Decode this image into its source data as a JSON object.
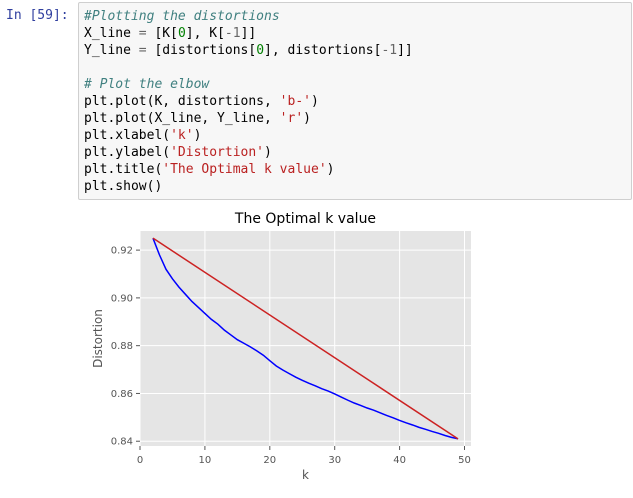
{
  "cell": {
    "prompt": "In [59]:",
    "code_lines": [
      [
        {
          "t": "#Plotting the distortions",
          "c": "cm"
        }
      ],
      [
        {
          "t": "X_line "
        },
        {
          "t": "=",
          "c": "op"
        },
        {
          "t": " [K["
        },
        {
          "t": "0",
          "c": "num"
        },
        {
          "t": "], K["
        },
        {
          "t": "-1",
          "c": "op"
        },
        {
          "t": "]]"
        }
      ],
      [
        {
          "t": "Y_line "
        },
        {
          "t": "=",
          "c": "op"
        },
        {
          "t": " [distortions["
        },
        {
          "t": "0",
          "c": "num"
        },
        {
          "t": "], distortions["
        },
        {
          "t": "-1",
          "c": "op"
        },
        {
          "t": "]]"
        }
      ],
      [
        {
          "t": ""
        }
      ],
      [
        {
          "t": "# Plot the elbow",
          "c": "cm"
        }
      ],
      [
        {
          "t": "plt.plot(K, distortions, "
        },
        {
          "t": "'b-'",
          "c": "str"
        },
        {
          "t": ")"
        }
      ],
      [
        {
          "t": "plt.plot(X_line, Y_line, "
        },
        {
          "t": "'r'",
          "c": "str"
        },
        {
          "t": ")"
        }
      ],
      [
        {
          "t": "plt.xlabel("
        },
        {
          "t": "'k'",
          "c": "str"
        },
        {
          "t": ")"
        }
      ],
      [
        {
          "t": "plt.ylabel("
        },
        {
          "t": "'Distortion'",
          "c": "str"
        },
        {
          "t": ")"
        }
      ],
      [
        {
          "t": "plt.title("
        },
        {
          "t": "'The Optimal k value'",
          "c": "str"
        },
        {
          "t": ")"
        }
      ],
      [
        {
          "t": "plt.show()"
        }
      ]
    ]
  },
  "chart_data": {
    "type": "line",
    "title": "The Optimal k value",
    "xlabel": "k",
    "ylabel": "Distortion",
    "xlim": [
      0,
      51
    ],
    "ylim": [
      0.838,
      0.928
    ],
    "xticks": [
      0,
      10,
      20,
      30,
      40,
      50
    ],
    "yticks": [
      0.84,
      0.86,
      0.88,
      0.9,
      0.92
    ],
    "ytick_labels": [
      "0.84",
      "0.86",
      "0.88",
      "0.90",
      "0.92"
    ],
    "grid": true,
    "background": "#e5e5e5",
    "series": [
      {
        "color": "#0000ff",
        "x": [
          2,
          3,
          4,
          5,
          6,
          7,
          8,
          9,
          10,
          11,
          12,
          13,
          14,
          15,
          16,
          17,
          18,
          19,
          20,
          21,
          22,
          23,
          24,
          25,
          26,
          27,
          28,
          29,
          30,
          31,
          32,
          33,
          34,
          35,
          36,
          37,
          38,
          39,
          40,
          41,
          42,
          43,
          44,
          45,
          46,
          47,
          48,
          49
        ],
        "y": [
          0.925,
          0.918,
          0.912,
          0.908,
          0.9045,
          0.9015,
          0.8985,
          0.896,
          0.8935,
          0.891,
          0.889,
          0.8865,
          0.8845,
          0.8825,
          0.881,
          0.8795,
          0.8778,
          0.876,
          0.8737,
          0.8715,
          0.8698,
          0.8683,
          0.8668,
          0.8655,
          0.8643,
          0.8632,
          0.862,
          0.861,
          0.8598,
          0.8585,
          0.8572,
          0.856,
          0.855,
          0.8539,
          0.853,
          0.8519,
          0.8508,
          0.8498,
          0.8487,
          0.8477,
          0.8468,
          0.8458,
          0.845,
          0.8441,
          0.8433,
          0.8424,
          0.8416,
          0.841
        ]
      },
      {
        "color": "#cc2222",
        "x": [
          2,
          49
        ],
        "y": [
          0.925,
          0.841
        ]
      }
    ]
  }
}
